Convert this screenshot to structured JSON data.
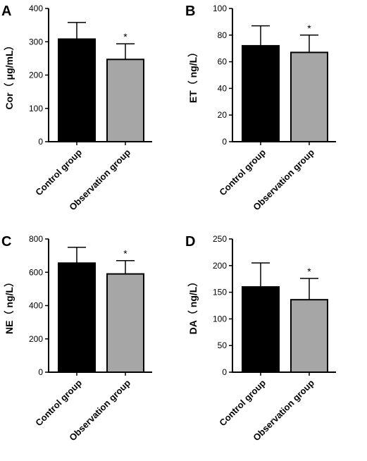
{
  "chart_data": [
    {
      "type": "bar",
      "panel": "A",
      "ylabel": "Cor（ μg/mL）",
      "ylim": [
        0,
        400
      ],
      "yticks": [
        0,
        100,
        200,
        300,
        400
      ],
      "categories": [
        "Control group",
        "Observation group"
      ],
      "values": [
        308,
        247
      ],
      "errors": [
        50,
        47
      ],
      "bar_colors": [
        "#000000",
        "#a6a6a6"
      ],
      "significance": [
        "",
        "*"
      ]
    },
    {
      "type": "bar",
      "panel": "B",
      "ylabel": "ET（ ng/L）",
      "ylim": [
        0,
        100
      ],
      "yticks": [
        0,
        20,
        40,
        60,
        80,
        100
      ],
      "categories": [
        "Control group",
        "Observation group"
      ],
      "values": [
        72,
        67
      ],
      "errors": [
        15,
        13
      ],
      "bar_colors": [
        "#000000",
        "#a6a6a6"
      ],
      "significance": [
        "",
        "*"
      ]
    },
    {
      "type": "bar",
      "panel": "C",
      "ylabel": "NE（ ng/L）",
      "ylim": [
        0,
        800
      ],
      "yticks": [
        0,
        200,
        400,
        600,
        800
      ],
      "categories": [
        "Control group",
        "Observation group"
      ],
      "values": [
        655,
        590
      ],
      "errors": [
        95,
        80
      ],
      "bar_colors": [
        "#000000",
        "#a6a6a6"
      ],
      "significance": [
        "",
        "*"
      ]
    },
    {
      "type": "bar",
      "panel": "D",
      "ylabel": "DA（ ng/L）",
      "ylim": [
        0,
        250
      ],
      "yticks": [
        0,
        50,
        100,
        150,
        200,
        250
      ],
      "categories": [
        "Control group",
        "Observation group"
      ],
      "values": [
        160,
        136
      ],
      "errors": [
        45,
        40
      ],
      "bar_colors": [
        "#000000",
        "#a6a6a6"
      ],
      "significance": [
        "",
        "*"
      ]
    }
  ]
}
